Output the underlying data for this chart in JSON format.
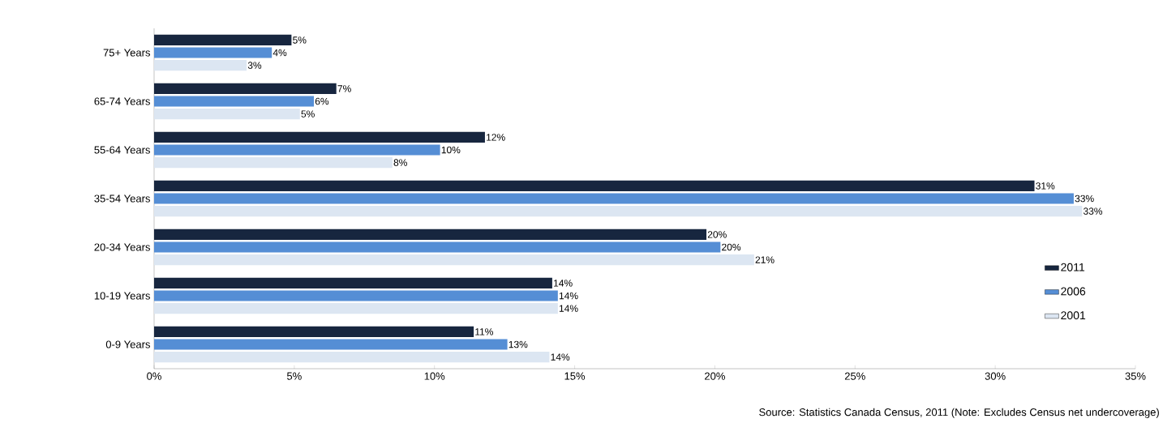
{
  "chart_data": {
    "type": "bar",
    "orientation": "horizontal",
    "categories": [
      "75+ Years",
      "65-74 Years",
      "55-64 Years",
      "35-54 Years",
      "20-34 Years",
      "10-19 Years",
      "0-9 Years"
    ],
    "series": [
      {
        "name": "2011",
        "color": "#17263f",
        "values": [
          4.9,
          6.5,
          11.8,
          31.4,
          19.7,
          14.2,
          11.4
        ],
        "value_labels": [
          "5%",
          "7%",
          "12%",
          "31%",
          "20%",
          "14%",
          "11%"
        ]
      },
      {
        "name": "2006",
        "color": "#558ed5",
        "values": [
          4.2,
          5.7,
          10.2,
          32.8,
          20.2,
          14.4,
          12.6
        ],
        "value_labels": [
          "4%",
          "6%",
          "10%",
          "33%",
          "20%",
          "14%",
          "13%"
        ]
      },
      {
        "name": "2001",
        "color": "#dce6f2",
        "values": [
          3.3,
          5.2,
          8.5,
          33.1,
          21.4,
          14.4,
          14.1
        ],
        "value_labels": [
          "3%",
          "5%",
          "8%",
          "33%",
          "21%",
          "14%",
          "14%"
        ]
      }
    ],
    "xlim": [
      0,
      35
    ],
    "xticks": [
      {
        "value": 0,
        "label": "0%"
      },
      {
        "value": 5,
        "label": "5%"
      },
      {
        "value": 10,
        "label": "10%"
      },
      {
        "value": 15,
        "label": "15%"
      },
      {
        "value": 20,
        "label": "20%"
      },
      {
        "value": 25,
        "label": "25%"
      },
      {
        "value": 30,
        "label": "30%"
      },
      {
        "value": 35,
        "label": "35%"
      }
    ],
    "legend": "bottom right",
    "grid": false,
    "annotations": [
      "Source: Statistics Canada Census, 2011 (Note: Excludes Census net undercoverage)"
    ]
  }
}
